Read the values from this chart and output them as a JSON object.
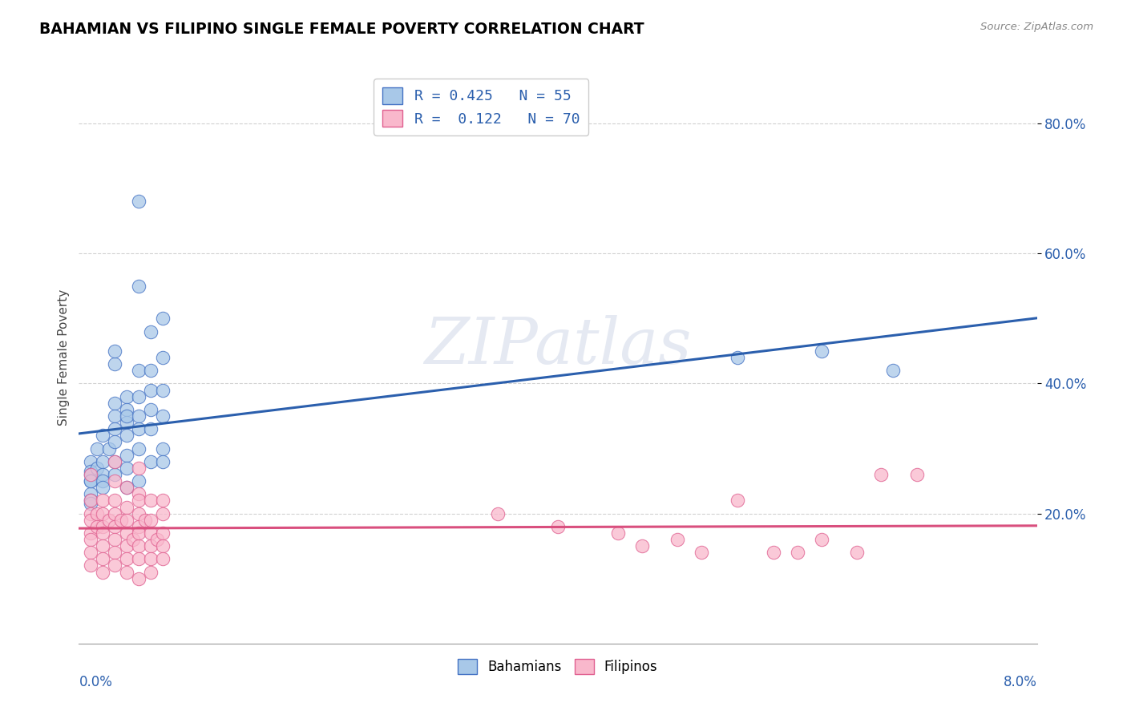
{
  "title": "BAHAMIAN VS FILIPINO SINGLE FEMALE POVERTY CORRELATION CHART",
  "source": "Source: ZipAtlas.com",
  "ylabel": "Single Female Poverty",
  "x_range": [
    0.0,
    0.08
  ],
  "y_range": [
    0.0,
    0.88
  ],
  "y_ticks": [
    0.2,
    0.4,
    0.6,
    0.8
  ],
  "y_tick_labels": [
    "20.0%",
    "40.0%",
    "60.0%",
    "80.0%"
  ],
  "bahamian_color": "#a8c8e8",
  "bahamian_edge_color": "#4472c4",
  "bahamian_line_color": "#2b5fad",
  "filipino_color": "#f9b8cc",
  "filipino_edge_color": "#e06090",
  "filipino_line_color": "#d94f7e",
  "watermark_text": "ZIPatlas",
  "legend_label_bah": "R = 0.425   N = 55",
  "legend_label_fil": "R =  0.122   N = 70",
  "bahamian_points": [
    [
      0.001,
      0.28
    ],
    [
      0.001,
      0.265
    ],
    [
      0.001,
      0.26
    ],
    [
      0.001,
      0.25
    ],
    [
      0.001,
      0.23
    ],
    [
      0.001,
      0.22
    ],
    [
      0.001,
      0.215
    ],
    [
      0.001,
      0.25
    ],
    [
      0.0015,
      0.3
    ],
    [
      0.0015,
      0.27
    ],
    [
      0.002,
      0.28
    ],
    [
      0.002,
      0.26
    ],
    [
      0.002,
      0.25
    ],
    [
      0.002,
      0.24
    ],
    [
      0.002,
      0.32
    ],
    [
      0.0025,
      0.3
    ],
    [
      0.003,
      0.37
    ],
    [
      0.003,
      0.35
    ],
    [
      0.003,
      0.33
    ],
    [
      0.003,
      0.31
    ],
    [
      0.003,
      0.28
    ],
    [
      0.003,
      0.26
    ],
    [
      0.003,
      0.43
    ],
    [
      0.003,
      0.45
    ],
    [
      0.004,
      0.38
    ],
    [
      0.004,
      0.36
    ],
    [
      0.004,
      0.34
    ],
    [
      0.004,
      0.32
    ],
    [
      0.004,
      0.29
    ],
    [
      0.004,
      0.27
    ],
    [
      0.004,
      0.24
    ],
    [
      0.004,
      0.35
    ],
    [
      0.005,
      0.42
    ],
    [
      0.005,
      0.38
    ],
    [
      0.005,
      0.35
    ],
    [
      0.005,
      0.33
    ],
    [
      0.005,
      0.3
    ],
    [
      0.005,
      0.25
    ],
    [
      0.005,
      0.55
    ],
    [
      0.005,
      0.68
    ],
    [
      0.006,
      0.48
    ],
    [
      0.006,
      0.42
    ],
    [
      0.006,
      0.39
    ],
    [
      0.006,
      0.36
    ],
    [
      0.006,
      0.33
    ],
    [
      0.006,
      0.28
    ],
    [
      0.007,
      0.5
    ],
    [
      0.007,
      0.44
    ],
    [
      0.007,
      0.39
    ],
    [
      0.007,
      0.35
    ],
    [
      0.007,
      0.3
    ],
    [
      0.007,
      0.28
    ],
    [
      0.055,
      0.44
    ],
    [
      0.062,
      0.45
    ],
    [
      0.068,
      0.42
    ]
  ],
  "filipino_points": [
    [
      0.001,
      0.22
    ],
    [
      0.001,
      0.2
    ],
    [
      0.001,
      0.19
    ],
    [
      0.001,
      0.17
    ],
    [
      0.001,
      0.16
    ],
    [
      0.001,
      0.14
    ],
    [
      0.001,
      0.12
    ],
    [
      0.001,
      0.26
    ],
    [
      0.0015,
      0.2
    ],
    [
      0.0015,
      0.18
    ],
    [
      0.002,
      0.22
    ],
    [
      0.002,
      0.2
    ],
    [
      0.002,
      0.18
    ],
    [
      0.002,
      0.17
    ],
    [
      0.002,
      0.15
    ],
    [
      0.002,
      0.13
    ],
    [
      0.002,
      0.11
    ],
    [
      0.0025,
      0.19
    ],
    [
      0.003,
      0.28
    ],
    [
      0.003,
      0.25
    ],
    [
      0.003,
      0.22
    ],
    [
      0.003,
      0.2
    ],
    [
      0.003,
      0.18
    ],
    [
      0.003,
      0.16
    ],
    [
      0.003,
      0.14
    ],
    [
      0.003,
      0.12
    ],
    [
      0.0035,
      0.19
    ],
    [
      0.004,
      0.24
    ],
    [
      0.004,
      0.21
    ],
    [
      0.004,
      0.19
    ],
    [
      0.004,
      0.17
    ],
    [
      0.004,
      0.15
    ],
    [
      0.004,
      0.13
    ],
    [
      0.004,
      0.11
    ],
    [
      0.0045,
      0.16
    ],
    [
      0.005,
      0.27
    ],
    [
      0.005,
      0.23
    ],
    [
      0.005,
      0.2
    ],
    [
      0.005,
      0.18
    ],
    [
      0.005,
      0.15
    ],
    [
      0.005,
      0.13
    ],
    [
      0.005,
      0.1
    ],
    [
      0.005,
      0.22
    ],
    [
      0.005,
      0.17
    ],
    [
      0.0055,
      0.19
    ],
    [
      0.006,
      0.22
    ],
    [
      0.006,
      0.19
    ],
    [
      0.006,
      0.17
    ],
    [
      0.006,
      0.15
    ],
    [
      0.006,
      0.13
    ],
    [
      0.006,
      0.11
    ],
    [
      0.0065,
      0.16
    ],
    [
      0.007,
      0.22
    ],
    [
      0.007,
      0.2
    ],
    [
      0.007,
      0.17
    ],
    [
      0.007,
      0.15
    ],
    [
      0.007,
      0.13
    ],
    [
      0.035,
      0.2
    ],
    [
      0.04,
      0.18
    ],
    [
      0.045,
      0.17
    ],
    [
      0.047,
      0.15
    ],
    [
      0.05,
      0.16
    ],
    [
      0.052,
      0.14
    ],
    [
      0.055,
      0.22
    ],
    [
      0.058,
      0.14
    ],
    [
      0.06,
      0.14
    ],
    [
      0.062,
      0.16
    ],
    [
      0.065,
      0.14
    ],
    [
      0.067,
      0.26
    ],
    [
      0.07,
      0.26
    ]
  ]
}
